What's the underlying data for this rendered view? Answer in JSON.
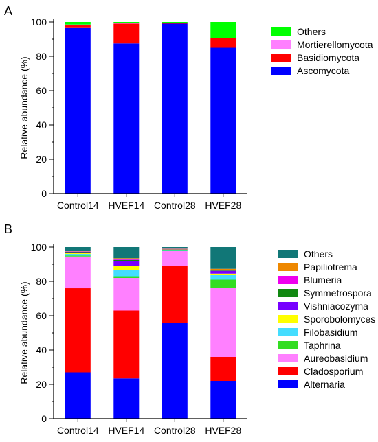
{
  "chart_data": [
    {
      "panel": "A",
      "type": "bar",
      "stacked": true,
      "categories": [
        "Control14",
        "HVEF14",
        "Control28",
        "HVEF28"
      ],
      "ylabel": "Relative abundance (%)",
      "ylim": [
        0,
        100
      ],
      "yticks": [
        0,
        20,
        40,
        60,
        80,
        100
      ],
      "legend_position": "right",
      "series": [
        {
          "name": "Ascomycota",
          "color": "#0000ff",
          "values": [
            96.5,
            87.5,
            99.0,
            85.0
          ]
        },
        {
          "name": "Basidiomycota",
          "color": "#ff0000",
          "values": [
            1.5,
            11.5,
            0.3,
            5.5
          ]
        },
        {
          "name": "Mortierellomycota",
          "color": "#ff80ff",
          "values": [
            0.5,
            0.3,
            0.2,
            0.2
          ]
        },
        {
          "name": "Others",
          "color": "#00ff00",
          "values": [
            1.5,
            0.7,
            0.5,
            9.3
          ]
        }
      ]
    },
    {
      "panel": "B",
      "type": "bar",
      "stacked": true,
      "categories": [
        "Control14",
        "HVEF14",
        "Control28",
        "HVEF28"
      ],
      "ylabel": "Relative abundance (%)",
      "ylim": [
        0,
        100
      ],
      "yticks": [
        0,
        20,
        40,
        60,
        80,
        100
      ],
      "legend_position": "right",
      "series": [
        {
          "name": "Alternaria",
          "color": "#0000ff",
          "values": [
            27.0,
            23.5,
            56.0,
            22.0
          ]
        },
        {
          "name": "Cladosporium",
          "color": "#ff0000",
          "values": [
            49.0,
            39.5,
            33.0,
            14.0
          ]
        },
        {
          "name": "Aureobasidium",
          "color": "#ff80ff",
          "values": [
            18.5,
            19.0,
            9.0,
            40.0
          ]
        },
        {
          "name": "Taphrina",
          "color": "#33dd22",
          "values": [
            0.5,
            1.0,
            0.2,
            5.0
          ]
        },
        {
          "name": "Filobasidium",
          "color": "#44ddff",
          "values": [
            1.0,
            3.5,
            0.2,
            3.0
          ]
        },
        {
          "name": "Sporobolomyces",
          "color": "#ffff00",
          "values": [
            0.5,
            2.5,
            0.2,
            0.5
          ]
        },
        {
          "name": "Vishniacozyma",
          "color": "#7700ff",
          "values": [
            0.5,
            3.0,
            0.2,
            1.5
          ]
        },
        {
          "name": "Symmetrospora",
          "color": "#118811",
          "values": [
            0.3,
            0.5,
            0.1,
            0.3
          ]
        },
        {
          "name": "Blumeria",
          "color": "#ee00ee",
          "values": [
            0.2,
            0.5,
            0.1,
            0.5
          ]
        },
        {
          "name": "Papiliotrema",
          "color": "#ee8800",
          "values": [
            0.5,
            0.5,
            0.1,
            0.5
          ]
        },
        {
          "name": "Others",
          "color": "#117777",
          "values": [
            2.0,
            6.5,
            0.9,
            12.7
          ]
        }
      ]
    }
  ],
  "panels": {
    "a_letter": "A",
    "b_letter": "B"
  }
}
